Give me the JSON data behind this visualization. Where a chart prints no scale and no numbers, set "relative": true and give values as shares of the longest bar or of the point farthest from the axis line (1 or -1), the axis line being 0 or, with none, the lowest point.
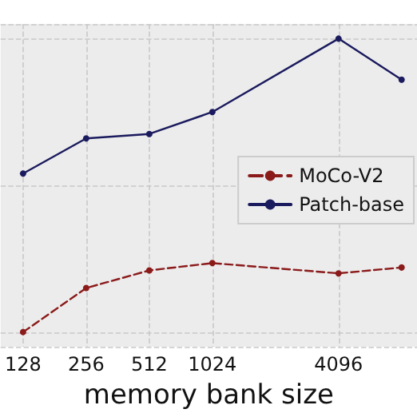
{
  "chart_data": {
    "type": "line",
    "xlabel": "memory bank size",
    "x": [
      128,
      256,
      512,
      1024,
      4096,
      8192
    ],
    "log": "x",
    "xlim": [
      100,
      9700
    ],
    "xticks": [
      128,
      256,
      512,
      1024,
      4096
    ],
    "relative": true,
    "grid": true,
    "legend": "right",
    "marker": "circle",
    "series": [
      {
        "name": "MoCo-V2",
        "color": "#8b1a1a",
        "line_style": "dashed",
        "values": [
          0,
          0.15,
          0.21,
          0.235,
          0.2,
          0.22
        ]
      },
      {
        "name": "Patch-base",
        "color": "#1a1a5e",
        "line_style": "solid",
        "values": [
          0.54,
          0.66,
          0.675,
          0.75,
          1,
          0.86
        ]
      }
    ]
  }
}
